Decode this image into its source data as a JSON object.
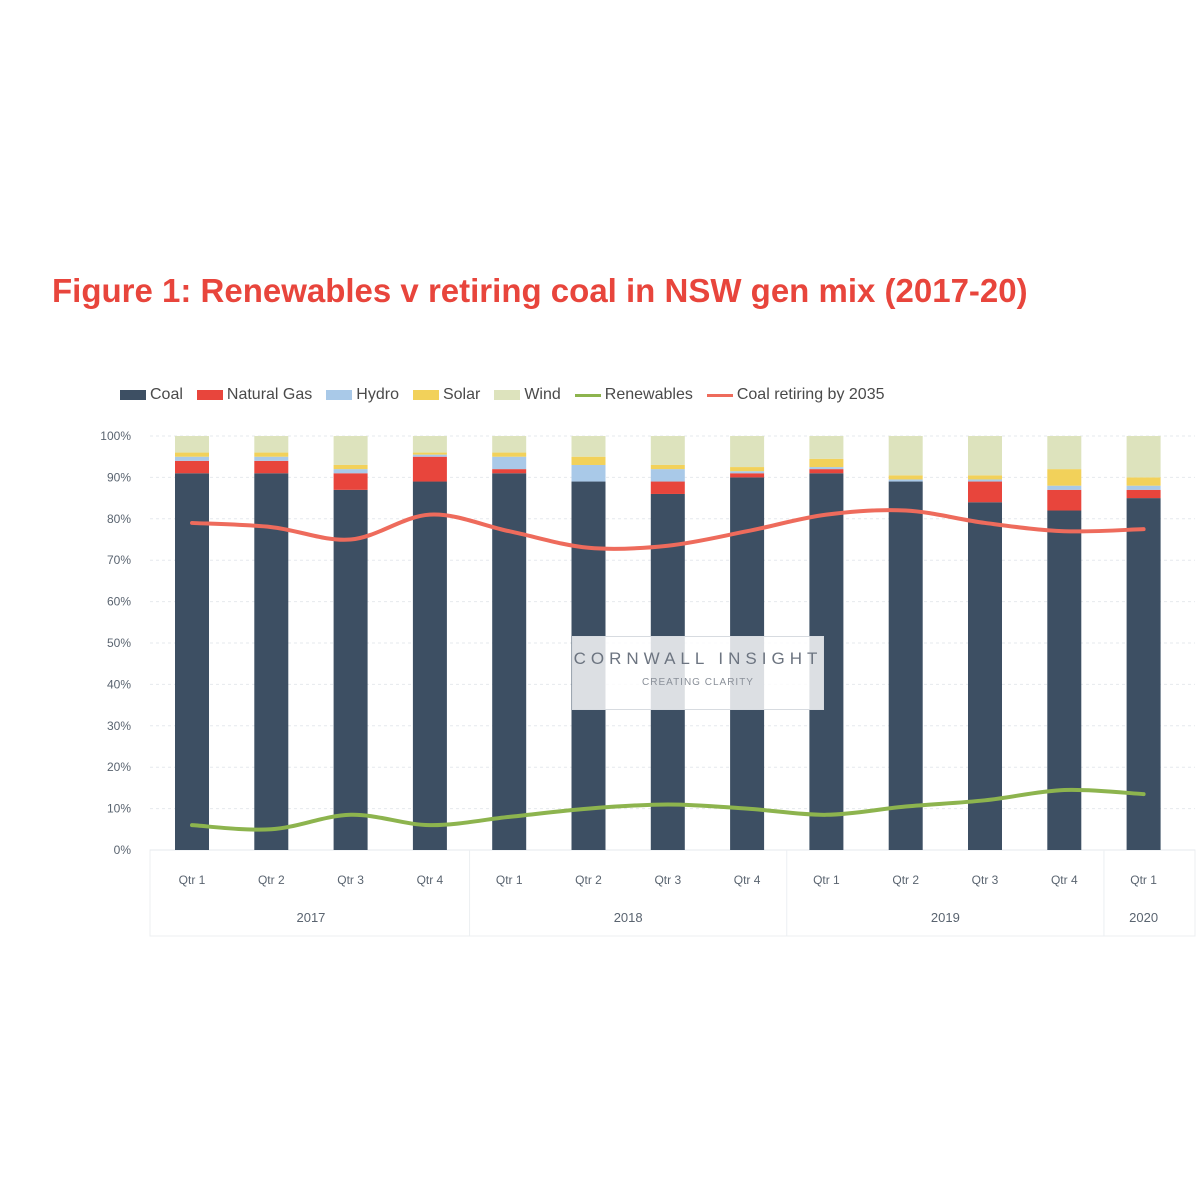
{
  "chart_data": {
    "type": "bar",
    "stacked": true,
    "title": "Figure 1: Renewables v retiring coal in NSW gen mix (2017-20)",
    "categories": [
      "Qtr 1",
      "Qtr 2",
      "Qtr 3",
      "Qtr 4",
      "Qtr 1",
      "Qtr 2",
      "Qtr 3",
      "Qtr 4",
      "Qtr 1",
      "Qtr 2",
      "Qtr 3",
      "Qtr 4",
      "Qtr 1"
    ],
    "years": [
      {
        "label": "2017",
        "span": [
          0,
          3
        ]
      },
      {
        "label": "2018",
        "span": [
          4,
          7
        ]
      },
      {
        "label": "2019",
        "span": [
          8,
          11
        ]
      },
      {
        "label": "2020",
        "span": [
          12,
          12
        ]
      }
    ],
    "yticks": [
      "0%",
      "10%",
      "20%",
      "30%",
      "40%",
      "50%",
      "60%",
      "70%",
      "80%",
      "90%",
      "100%"
    ],
    "ylim": [
      0,
      100
    ],
    "legend_position": "top",
    "series": [
      {
        "name": "Coal",
        "kind": "bar",
        "color": "#3d4f63",
        "values": [
          91,
          91,
          87,
          89,
          91,
          89,
          86,
          90,
          91,
          89,
          84,
          82,
          85
        ]
      },
      {
        "name": "Natural Gas",
        "kind": "bar",
        "color": "#e8453c",
        "values": [
          3,
          3,
          4,
          6,
          1,
          0,
          3,
          1,
          1,
          0,
          5,
          5,
          2
        ]
      },
      {
        "name": "Hydro",
        "kind": "bar",
        "color": "#a9c9e8",
        "values": [
          1,
          1,
          1,
          0.5,
          3,
          4,
          3,
          0.5,
          0.5,
          0.5,
          0.5,
          1,
          1
        ]
      },
      {
        "name": "Solar",
        "kind": "bar",
        "color": "#f2d15a",
        "values": [
          1,
          1,
          1,
          0.5,
          1,
          2,
          1,
          1,
          2,
          1,
          1,
          4,
          2
        ]
      },
      {
        "name": "Wind",
        "kind": "bar",
        "color": "#dde3bd",
        "values": [
          4,
          4,
          7,
          4,
          4,
          5,
          7,
          7.5,
          5.5,
          9.5,
          9.5,
          8,
          10
        ]
      },
      {
        "name": "Renewables",
        "kind": "line",
        "color": "#8db44e",
        "values": [
          6,
          5,
          8.5,
          6,
          8,
          10,
          11,
          10,
          8.5,
          10.5,
          12,
          14.5,
          13.5
        ]
      },
      {
        "name": "Coal retiring by 2035",
        "kind": "line",
        "color": "#ee6b5c",
        "values": [
          79,
          78,
          75,
          81,
          77,
          73,
          73.5,
          77,
          81,
          82,
          79,
          77,
          77.5
        ]
      }
    ]
  },
  "watermark": {
    "brand": "CORNWALL INSIGHT",
    "tagline": "CREATING CLARITY"
  }
}
